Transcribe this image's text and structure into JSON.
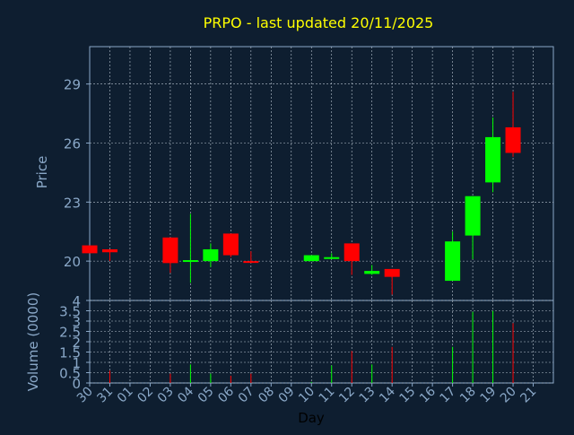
{
  "chart_data": {
    "type": "candlestick",
    "title": "PRPO - last updated 20/11/2025",
    "xlabel": "Day",
    "price_panel": {
      "ylabel": "Price",
      "ylim": [
        18.0,
        30.9
      ],
      "yticks": [
        20,
        23,
        26,
        29
      ],
      "grid": true
    },
    "volume_panel": {
      "ylabel": "Volume (0000)",
      "ylim": [
        0,
        4
      ],
      "yticks": [
        0,
        0.5,
        1,
        1.5,
        2,
        2.5,
        3,
        3.5,
        4
      ],
      "yticklabels": [
        "0",
        "0.5",
        "1",
        "1.5",
        "2",
        "2.5",
        "3",
        "3.5",
        "4"
      ],
      "grid": true
    },
    "x_ticklabels": [
      "30",
      "31",
      "01",
      "02",
      "03",
      "04",
      "05",
      "06",
      "07",
      "08",
      "09",
      "10",
      "11",
      "12",
      "13",
      "14",
      "15",
      "16",
      "17",
      "18",
      "19",
      "20",
      "21"
    ],
    "candles": [
      {
        "day": "30",
        "open": 20.8,
        "high": 20.8,
        "low": 20.4,
        "close": 20.4,
        "volume": 0.0
      },
      {
        "day": "31",
        "open": 20.6,
        "high": 20.6,
        "low": 20.0,
        "close": 20.45,
        "volume": 0.6
      },
      {
        "day": "03",
        "open": 21.2,
        "high": 21.2,
        "low": 19.4,
        "close": 19.9,
        "volume": 0.45
      },
      {
        "day": "04",
        "open": 20.0,
        "high": 22.4,
        "low": 18.9,
        "close": 20.05,
        "volume": 0.9
      },
      {
        "day": "05",
        "open": 20.0,
        "high": 20.9,
        "low": 19.7,
        "close": 20.6,
        "volume": 0.45
      },
      {
        "day": "06",
        "open": 21.4,
        "high": 21.4,
        "low": 20.2,
        "close": 20.3,
        "volume": 0.35
      },
      {
        "day": "07",
        "open": 20.0,
        "high": 20.5,
        "low": 19.9,
        "close": 19.95,
        "volume": 0.45
      },
      {
        "day": "10",
        "open": 20.0,
        "high": 20.3,
        "low": 20.0,
        "close": 20.3,
        "volume": 0.05
      },
      {
        "day": "11",
        "open": 20.15,
        "high": 20.4,
        "low": 20.1,
        "close": 20.2,
        "volume": 0.85
      },
      {
        "day": "12",
        "open": 20.9,
        "high": 20.9,
        "low": 19.3,
        "close": 20.0,
        "volume": 1.55
      },
      {
        "day": "13",
        "open": 19.35,
        "high": 19.8,
        "low": 19.3,
        "close": 19.5,
        "volume": 0.9
      },
      {
        "day": "14",
        "open": 19.6,
        "high": 19.6,
        "low": 18.3,
        "close": 19.2,
        "volume": 1.75
      },
      {
        "day": "17",
        "open": 19.0,
        "high": 21.5,
        "low": 19.0,
        "close": 21.0,
        "volume": 1.75
      },
      {
        "day": "18",
        "open": 21.3,
        "high": 23.3,
        "low": 20.1,
        "close": 23.3,
        "volume": 3.45
      },
      {
        "day": "19",
        "open": 24.0,
        "high": 27.3,
        "low": 23.5,
        "close": 26.3,
        "volume": 3.5
      },
      {
        "day": "20",
        "open": 26.8,
        "high": 28.6,
        "low": 25.3,
        "close": 25.5,
        "volume": 2.9
      }
    ],
    "colors": {
      "background": "#0e1e30",
      "up": "#00ff00",
      "down": "#ff0000",
      "axis": "#8aa8c8",
      "grid": "#b8c4d0",
      "title": "#ffff00",
      "xlabel": "#000000"
    }
  }
}
